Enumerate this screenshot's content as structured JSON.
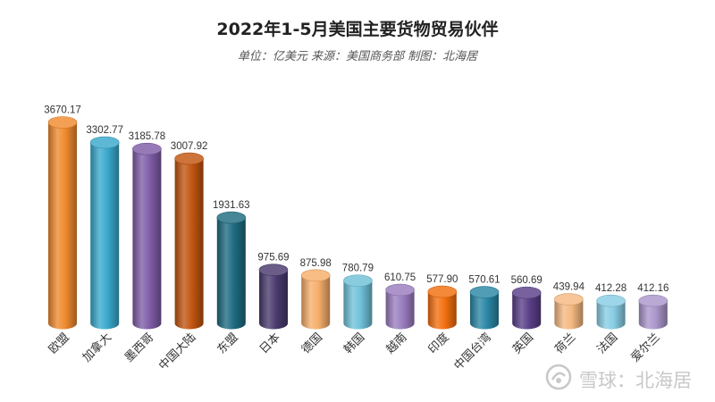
{
  "chart_data": {
    "type": "bar",
    "title": "2022年1-5月美国主要货物贸易伙伴",
    "subtitle": "单位：亿美元 来源：美国商务部 制图：北海居",
    "categories": [
      "欧盟",
      "加拿大",
      "墨西哥",
      "中国大陆",
      "东盟",
      "日本",
      "德国",
      "韩国",
      "越南",
      "印度",
      "中国台湾",
      "英国",
      "荷兰",
      "法国",
      "爱尔兰"
    ],
    "values": [
      3670.17,
      3302.77,
      3185.78,
      3007.92,
      1931.63,
      975.69,
      875.98,
      780.79,
      610.75,
      577.9,
      570.61,
      560.69,
      439.94,
      412.28,
      412.16
    ],
    "value_labels": [
      "3670.17",
      "3302.77",
      "3185.78",
      "3007.92",
      "1931.63",
      "975.69",
      "875.98",
      "780.79",
      "610.75",
      "577.90",
      "570.61",
      "560.69",
      "439.94",
      "412.28",
      "412.16"
    ],
    "colors": [
      "#f08a2e",
      "#3aa9cc",
      "#7f5da8",
      "#c25510",
      "#1d6b80",
      "#4a3a6e",
      "#f6ae6a",
      "#6fc1d9",
      "#9a7dc0",
      "#f36f0f",
      "#2a87a5",
      "#5a3f88",
      "#f5b880",
      "#87cde4",
      "#ab96cc"
    ],
    "xlabel": "",
    "ylabel": "",
    "grid": false,
    "legend": "none"
  },
  "watermark": {
    "text": "雪球：北海居",
    "icon": "snowball-logo-icon"
  }
}
